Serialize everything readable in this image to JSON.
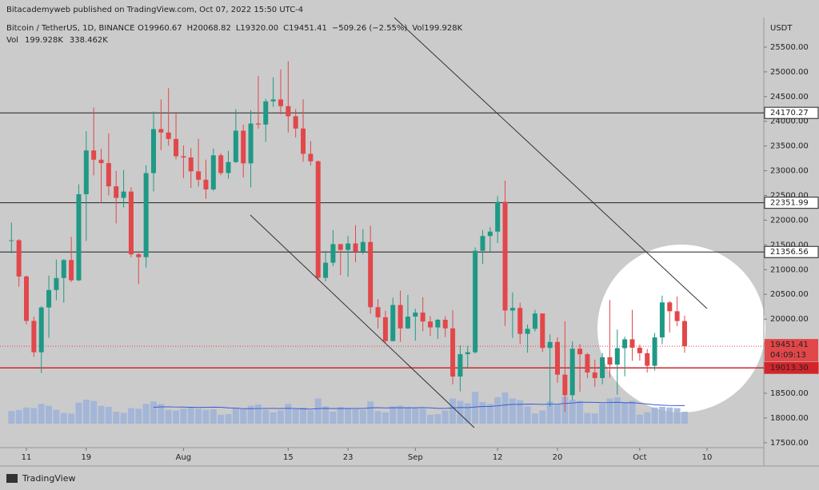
{
  "chart_data": {
    "type": "candlestick",
    "header": "Bitacademyweb published on TradingView.com, Oct 07, 2022 15:50 UTC-4",
    "symbol": "Bitcoin / TetherUS, 1D, BINANCE",
    "ohlc_legend": [
      "O19960.67",
      "H20068.82",
      "L19320.00",
      "C19451.41",
      "−509.26 (−2.55%)",
      "Vol199.928K"
    ],
    "volume_legend": [
      "Vol",
      "199.928K",
      "338.462K"
    ],
    "currency": "USDT",
    "footer": "TradingView",
    "categories": [
      null,
      null,
      "11",
      null,
      null,
      null,
      null,
      null,
      null,
      null,
      "19",
      null,
      null,
      null,
      null,
      null,
      null,
      null,
      null,
      null,
      null,
      null,
      null,
      "Aug",
      null,
      null,
      null,
      null,
      null,
      null,
      null,
      null,
      null,
      null,
      null,
      null,
      null,
      "15",
      null,
      null,
      null,
      null,
      null,
      null,
      null,
      "23",
      null,
      null,
      null,
      null,
      null,
      null,
      null,
      null,
      "Sep",
      null,
      null,
      null,
      null,
      null,
      null,
      null,
      null,
      null,
      null,
      "12",
      null,
      null,
      null,
      null,
      null,
      null,
      null,
      "20",
      null,
      null,
      null,
      null,
      null,
      null,
      null,
      null,
      null,
      null,
      "Oct",
      null,
      null,
      null,
      null,
      null,
      null,
      null,
      null,
      "10",
      null,
      null,
      null,
      null,
      null,
      null,
      null
    ],
    "open": [
      21587,
      21594,
      20862,
      19963,
      19328,
      20234,
      20588,
      20830,
      21195,
      20785,
      22525,
      23410,
      23223,
      23154,
      22684,
      22451,
      22579,
      21310,
      21252,
      22952,
      23842,
      23773,
      23643,
      23293,
      23268,
      22987,
      22818,
      22622,
      23312,
      22954,
      23175,
      23810,
      23149,
      23954,
      23934,
      24403,
      24441,
      24306,
      24102,
      23854,
      23342,
      23191,
      20834,
      21140,
      21516,
      21399,
      21529,
      21368,
      21559,
      20241,
      20037,
      19555,
      20285,
      19811,
      20050,
      20131,
      19951,
      19831,
      19986,
      19812,
      18837,
      19290,
      19329,
      21381,
      21680,
      21769,
      22370,
      20173,
      20226,
      19701,
      19803,
      20113,
      19416,
      19537,
      18876,
      18461,
      19401,
      19289,
      18920,
      18807,
      19227,
      19079,
      19412,
      19591,
      19422,
      19310,
      19056,
      19629,
      20337,
      20158,
      19960.67,
      null,
      null,
      null,
      null,
      null,
      null,
      null,
      null,
      null,
      null
    ],
    "high": [
      21950,
      21620,
      20880,
      20050,
      20260,
      20880,
      21200,
      21212,
      21660,
      22725,
      23800,
      24276,
      23442,
      23756,
      22998,
      23014,
      22666,
      21331,
      23112,
      24199,
      24442,
      24668,
      24194,
      23509,
      23457,
      23647,
      23225,
      23450,
      23354,
      23400,
      24245,
      23933,
      24226,
      24918,
      24456,
      24888,
      25047,
      25211,
      24247,
      24446,
      23600,
      23208,
      21382,
      21800,
      21522,
      21683,
      21900,
      21819,
      21886,
      20402,
      20171,
      20433,
      20576,
      20490,
      20208,
      20441,
      20055,
      20000,
      20058,
      20180,
      19463,
      19458,
      21450,
      21800,
      21860,
      22488,
      22799,
      20540,
      20330,
      19890,
      20189,
      20113,
      19690,
      19634,
      19956,
      19550,
      19500,
      19316,
      19180,
      19315,
      20385,
      19790,
      19645,
      20185,
      19484,
      19395,
      19719,
      20475,
      20365,
      20456,
      20068.82,
      null,
      null,
      null,
      null,
      null,
      null,
      null,
      null,
      null,
      null
    ],
    "low": [
      21330,
      20655,
      19890,
      19235,
      18910,
      19620,
      20382,
      20333,
      20750,
      20763,
      21580,
      22906,
      22341,
      22500,
      21935,
      22257,
      21250,
      20706,
      21042,
      22582,
      23414,
      23503,
      23227,
      22850,
      22654,
      22681,
      22430,
      22588,
      22910,
      22842,
      23154,
      22865,
      22664,
      23852,
      23583,
      24291,
      24140,
      23773,
      23671,
      23180,
      23107,
      20783,
      20761,
      21069,
      20890,
      20855,
      21150,
      21310,
      20107,
      19810,
      19520,
      19550,
      19540,
      19797,
      19565,
      19754,
      19655,
      19597,
      19635,
      18680,
      18540,
      19012,
      19297,
      21111,
      21367,
      21538,
      19860,
      19617,
      19497,
      19320,
      19748,
      19335,
      18232,
      18711,
      18125,
      18356,
      18531,
      18805,
      18629,
      18680,
      18816,
      18471,
      18843,
      19155,
      19159,
      18920,
      18959,
      19490,
      19730,
      19853,
      19320,
      null,
      null,
      null,
      null,
      null,
      null,
      null,
      null,
      null,
      null
    ],
    "close": [
      21594,
      20862,
      19963,
      19328,
      20234,
      20588,
      20830,
      21195,
      20785,
      22525,
      23410,
      23223,
      23154,
      22684,
      22451,
      22579,
      21310,
      21252,
      22952,
      23842,
      23773,
      23643,
      23293,
      23268,
      22987,
      22818,
      22622,
      23312,
      22954,
      23175,
      23810,
      23149,
      23954,
      23934,
      24403,
      24441,
      24306,
      24102,
      23854,
      23342,
      23191,
      20834,
      21140,
      21516,
      21399,
      21529,
      21368,
      21559,
      20241,
      20037,
      19555,
      20285,
      19811,
      20050,
      20131,
      19951,
      19831,
      19986,
      19812,
      18837,
      19290,
      19329,
      21381,
      21680,
      21769,
      22370,
      20173,
      20226,
      19701,
      19803,
      20113,
      19416,
      19537,
      18876,
      18461,
      19401,
      19289,
      18920,
      18807,
      19227,
      19079,
      19412,
      19591,
      19422,
      19310,
      19056,
      19629,
      20337,
      20158,
      19960,
      19451.41,
      null,
      null,
      null,
      null,
      null,
      null,
      null,
      null,
      null,
      null
    ],
    "volume": [
      210,
      230,
      270,
      260,
      330,
      300,
      230,
      180,
      170,
      350,
      400,
      380,
      300,
      280,
      200,
      180,
      260,
      250,
      330,
      370,
      330,
      230,
      220,
      250,
      270,
      250,
      230,
      240,
      150,
      160,
      270,
      240,
      300,
      320,
      230,
      190,
      220,
      330,
      240,
      270,
      220,
      420,
      290,
      200,
      280,
      260,
      240,
      230,
      370,
      210,
      190,
      290,
      300,
      280,
      260,
      250,
      150,
      160,
      220,
      420,
      380,
      340,
      530,
      360,
      330,
      440,
      520,
      420,
      390,
      290,
      170,
      220,
      370,
      330,
      450,
      400,
      380,
      180,
      170,
      330,
      420,
      440,
      360,
      380,
      150,
      190,
      270,
      280,
      270,
      260,
      199.928,
      null,
      null,
      null,
      null,
      null,
      null,
      null,
      null,
      null,
      null
    ],
    "up_color": "#1f9985",
    "down_color": "#e2474a",
    "volume_color": "#9db3d9",
    "ylim": [
      17400,
      26000
    ],
    "yticks": [
      {
        "value": 17500,
        "label": "17500.00"
      },
      {
        "value": 18000,
        "label": "18000.00"
      },
      {
        "value": 18500,
        "label": "18500.00"
      },
      {
        "value": 19000,
        "label": "19000.00"
      },
      {
        "value": 19500,
        "label": "19500.00"
      },
      {
        "value": 20000,
        "label": "20000.00"
      },
      {
        "value": 20500,
        "label": "20500.00"
      },
      {
        "value": 21000,
        "label": "21000.00"
      },
      {
        "value": 21500,
        "label": "21500.00"
      },
      {
        "value": 22000,
        "label": "22000.00"
      },
      {
        "value": 22500,
        "label": "22500.00"
      },
      {
        "value": 23000,
        "label": "23000.00"
      },
      {
        "value": 23500,
        "label": "23500.00"
      },
      {
        "value": 24000,
        "label": "24000.00"
      },
      {
        "value": 24500,
        "label": "24500.00"
      },
      {
        "value": 25000,
        "label": "25000.00"
      },
      {
        "value": 25500,
        "label": "25500.00"
      }
    ],
    "levels": [
      {
        "value": 24170.27,
        "color": "#222222"
      },
      {
        "value": 22351.99,
        "color": "#222222"
      },
      {
        "value": 21356.56,
        "color": "#222222"
      },
      {
        "value": {
          "value": 19013.3,
          "label": "19013.30"
        },
        "color": "#d0262b"
      }
    ],
    "last_price": 19451.41,
    "countdown": "04:09:13",
    "grid": false
  }
}
